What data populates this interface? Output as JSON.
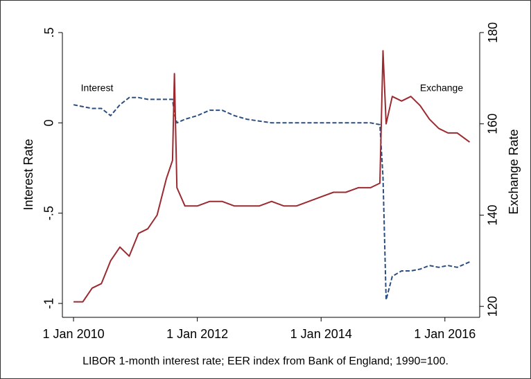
{
  "chart_data": {
    "type": "line",
    "ylabel": "Interest Rate",
    "y2label": "Exchange Rate",
    "caption": "LIBOR 1-month interest rate; EER index from Bank of England; 1990=100.",
    "annotations": [
      "Interest",
      "Exchange"
    ],
    "x": [
      2010.0,
      2010.15,
      2010.3,
      2010.45,
      2010.6,
      2010.75,
      2010.9,
      2011.05,
      2011.2,
      2011.35,
      2011.5,
      2011.6,
      2011.63,
      2011.67,
      2011.8,
      2012.0,
      2012.2,
      2012.4,
      2012.6,
      2012.8,
      2013.0,
      2013.2,
      2013.4,
      2013.6,
      2013.8,
      2014.0,
      2014.2,
      2014.4,
      2014.6,
      2014.8,
      2014.95,
      2015.0,
      2015.05,
      2015.15,
      2015.3,
      2015.45,
      2015.6,
      2015.75,
      2015.9,
      2016.05,
      2016.2,
      2016.4
    ],
    "series": [
      {
        "name": "Interest",
        "color": "#2b4e80",
        "dash": true,
        "values": [
          0.1,
          0.09,
          0.08,
          0.08,
          0.04,
          0.1,
          0.14,
          0.14,
          0.13,
          0.13,
          0.13,
          0.13,
          0.05,
          0,
          0.02,
          0.04,
          0.07,
          0.07,
          0.04,
          0.02,
          0.01,
          0,
          0,
          0,
          0,
          0,
          0,
          0,
          0,
          0,
          -0.01,
          -0.3,
          -0.98,
          -0.85,
          -0.82,
          -0.82,
          -0.81,
          -0.79,
          -0.8,
          -0.79,
          -0.8,
          -0.77
        ]
      },
      {
        "name": "Exchange",
        "color": "#9b2a30",
        "dash": false,
        "axis": "y2",
        "values": [
          121,
          121,
          124,
          125,
          130,
          133,
          131,
          136,
          137,
          140,
          148,
          152,
          171,
          146,
          142,
          142,
          143,
          143,
          142,
          142,
          142,
          143,
          142,
          142,
          143,
          144,
          145,
          145,
          146,
          146,
          147,
          176,
          160,
          166,
          165,
          166,
          164,
          161,
          159,
          158,
          158,
          156
        ]
      }
    ],
    "xlim": [
      2009.82,
      2016.54
    ],
    "xticks": [
      {
        "value": 2010,
        "label": "1 Jan 2010"
      },
      {
        "value": 2012,
        "label": "1 Jan 2012"
      },
      {
        "value": 2014,
        "label": "1 Jan 2014"
      },
      {
        "value": 2016,
        "label": "1 Jan 2016"
      }
    ],
    "ylim": [
      -1.077,
      0.5
    ],
    "yticks": [
      {
        "value": -1,
        "label": "-1"
      },
      {
        "value": -0.5,
        "label": "-.5"
      },
      {
        "value": 0,
        "label": "0"
      },
      {
        "value": 0.5,
        "label": ".5"
      }
    ],
    "y2lim": [
      117.6,
      180
    ],
    "y2ticks": [
      120,
      140,
      160,
      180
    ]
  }
}
